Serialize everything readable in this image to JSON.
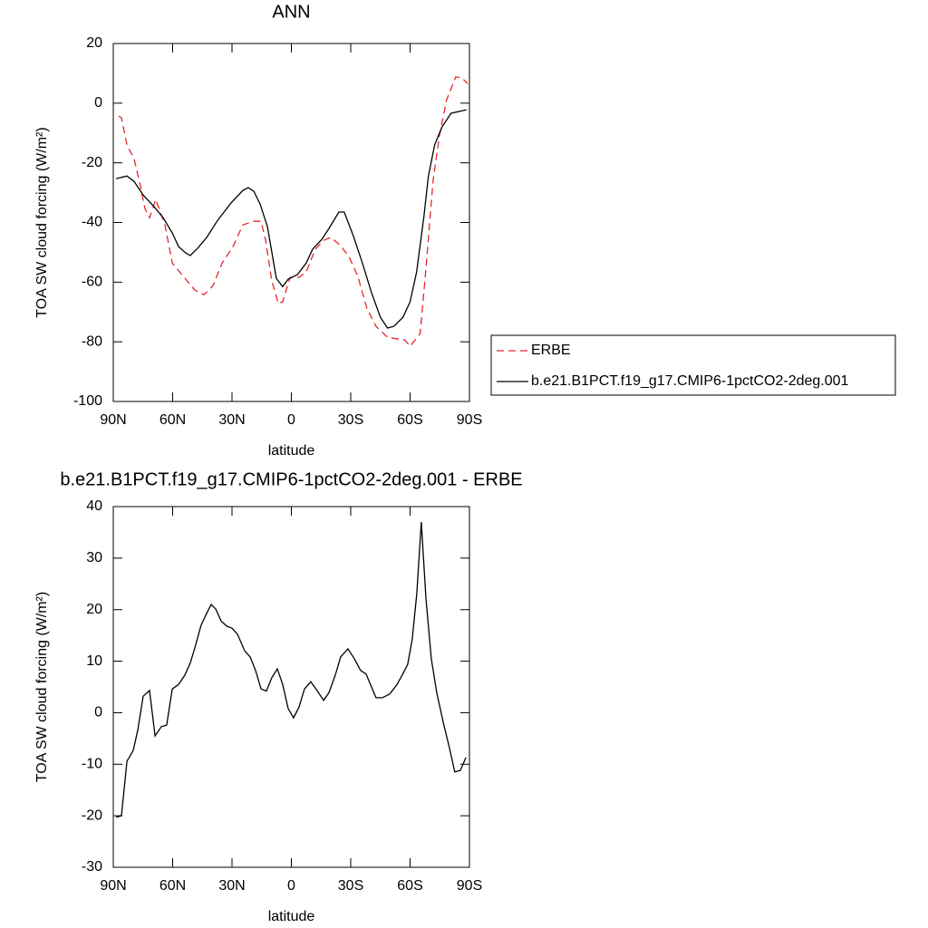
{
  "chart_data": [
    {
      "type": "line",
      "title": "ANN",
      "xlabel": "latitude",
      "ylabel": "TOA SW cloud forcing (W/m²)",
      "xlim": [
        90,
        -90
      ],
      "xticks": [
        {
          "value": 90,
          "label": "90N"
        },
        {
          "value": 60,
          "label": "60N"
        },
        {
          "value": 30,
          "label": "30N"
        },
        0,
        {
          "value": -30,
          "label": "30S"
        },
        {
          "value": -60,
          "label": "60S"
        },
        {
          "value": -90,
          "label": "90S"
        }
      ],
      "ylim": [
        -100,
        20
      ],
      "yticks": [
        -100,
        -80,
        -60,
        -40,
        -20,
        0,
        20
      ],
      "legend": "right",
      "series": [
        {
          "name": "ERBE",
          "color": "#e8262b",
          "line_style": "dashed",
          "x": [
            87.3,
            85.9,
            83.1,
            79.5,
            76.3,
            74.0,
            71.7,
            68.5,
            63.9,
            60.2,
            53.4,
            48.8,
            44.2,
            39.6,
            35.0,
            29.5,
            24.5,
            19.0,
            15.3,
            13.0,
            9.9,
            6.6,
            4.4,
            0.7,
            -3.9,
            -7.5,
            -12.1,
            -16.3,
            -19.9,
            -24.5,
            -29.1,
            -33.6,
            -38.2,
            -42.8,
            -48.6,
            -54.2,
            -57.4,
            -60.0,
            -65.1,
            -67.9,
            -71.6,
            -74.8,
            -78.5,
            -83.1,
            -86.3,
            -89.1
          ],
          "values": [
            -4.3,
            -4.9,
            -14.0,
            -18.6,
            -27.7,
            -35.3,
            -38.4,
            -32.3,
            -40.8,
            -53.6,
            -59.0,
            -62.7,
            -64.2,
            -61.2,
            -53.6,
            -48.1,
            -40.8,
            -39.6,
            -39.6,
            -46.0,
            -59.6,
            -67.2,
            -66.6,
            -58.4,
            -58.4,
            -56.6,
            -49.0,
            -46.0,
            -45.0,
            -47.5,
            -51.4,
            -58.1,
            -68.8,
            -74.8,
            -78.5,
            -79.1,
            -79.4,
            -81.5,
            -77.2,
            -56.6,
            -26.2,
            -11.0,
            1.2,
            8.8,
            8.4,
            6.6
          ]
        },
        {
          "name": "b.e21.B1PCT.f19_g17.CMIP6-1pctCO2-2deg.001",
          "color": "#000000",
          "line_style": "solid",
          "x": [
            88.6,
            83.1,
            79.5,
            74.9,
            69.4,
            64.8,
            60.2,
            57.0,
            53.4,
            51.1,
            47.4,
            42.8,
            37.3,
            30.5,
            24.5,
            21.8,
            19.0,
            15.8,
            12.1,
            7.6,
            4.4,
            1.6,
            -3.0,
            -7.5,
            -10.7,
            -15.3,
            -19.0,
            -24.0,
            -26.7,
            -31.3,
            -35.9,
            -40.4,
            -45.0,
            -48.6,
            -51.8,
            -56.4,
            -60.0,
            -63.3,
            -66.9,
            -69.2,
            -72.4,
            -76.1,
            -80.7,
            -88.5
          ],
          "values": [
            -25.3,
            -24.4,
            -26.2,
            -30.8,
            -34.7,
            -38.4,
            -43.5,
            -48.1,
            -50.2,
            -51.1,
            -48.7,
            -45.0,
            -39.3,
            -33.5,
            -29.2,
            -28.3,
            -29.5,
            -33.8,
            -41.4,
            -58.7,
            -61.5,
            -59.0,
            -57.5,
            -53.6,
            -49.0,
            -45.7,
            -42.0,
            -36.5,
            -36.5,
            -44.4,
            -53.6,
            -63.3,
            -71.8,
            -75.4,
            -74.8,
            -71.8,
            -66.6,
            -56.6,
            -38.4,
            -24.7,
            -14.0,
            -8.0,
            -3.4,
            -2.2
          ]
        }
      ]
    },
    {
      "type": "line",
      "title": "b.e21.B1PCT.f19_g17.CMIP6-1pctCO2-2deg.001 - ERBE",
      "xlabel": "latitude",
      "ylabel": "TOA SW cloud forcing (W/m²)",
      "xlim": [
        90,
        -90
      ],
      "xticks": [
        {
          "value": 90,
          "label": "90N"
        },
        {
          "value": 60,
          "label": "60N"
        },
        {
          "value": 30,
          "label": "30N"
        },
        0,
        {
          "value": -30,
          "label": "30S"
        },
        {
          "value": -60,
          "label": "60S"
        },
        {
          "value": -90,
          "label": "90S"
        }
      ],
      "ylim": [
        -30,
        40
      ],
      "yticks": [
        -30,
        -20,
        -10,
        0,
        10,
        20,
        30,
        40
      ],
      "series": [
        {
          "color": "#000000",
          "line_style": "solid",
          "x": [
            88.6,
            85.9,
            83.1,
            79.9,
            77.6,
            74.9,
            71.7,
            68.9,
            65.7,
            63.0,
            60.2,
            57.0,
            53.8,
            51.1,
            48.8,
            45.6,
            42.8,
            40.5,
            38.2,
            35.5,
            32.7,
            30.0,
            27.2,
            23.6,
            20.8,
            18.1,
            15.3,
            12.6,
            9.9,
            7.1,
            4.4,
            1.6,
            -1.1,
            -3.9,
            -6.6,
            -9.8,
            -13.0,
            -16.3,
            -19.0,
            -22.2,
            -24.9,
            -28.6,
            -31.8,
            -35.0,
            -37.8,
            -40.5,
            -42.8,
            -46.0,
            -49.6,
            -53.3,
            -56.0,
            -58.8,
            -61.1,
            -63.4,
            -65.7,
            -68.0,
            -70.7,
            -73.5,
            -77.1,
            -79.9,
            -82.6,
            -85.4,
            -88.2
          ],
          "values": [
            -20.3,
            -20.0,
            -9.4,
            -7.3,
            -3.3,
            3.2,
            4.3,
            -4.5,
            -2.7,
            -2.4,
            4.6,
            5.5,
            7.3,
            9.6,
            12.6,
            17.0,
            19.3,
            21.0,
            20.1,
            17.8,
            16.8,
            16.4,
            15.2,
            12.0,
            10.8,
            8.2,
            4.6,
            4.2,
            6.8,
            8.5,
            5.5,
            0.8,
            -1.0,
            1.1,
            4.6,
            6.0,
            4.3,
            2.4,
            3.9,
            7.3,
            10.8,
            12.4,
            10.5,
            8.2,
            7.5,
            5.0,
            2.9,
            2.9,
            3.6,
            5.4,
            7.3,
            9.4,
            14.3,
            23.1,
            37.0,
            22.2,
            10.5,
            3.8,
            -2.4,
            -6.8,
            -11.5,
            -11.2,
            -8.7
          ]
        }
      ]
    }
  ]
}
